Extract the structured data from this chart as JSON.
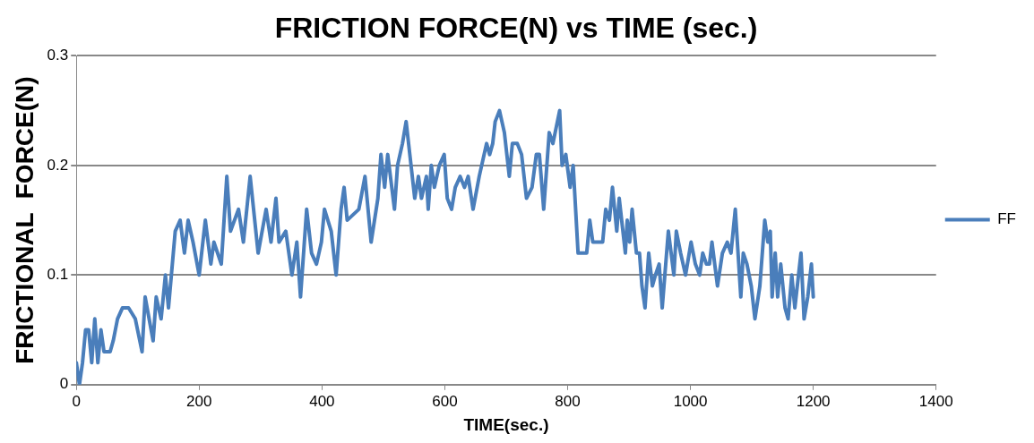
{
  "chart_data": {
    "type": "line",
    "title": "FRICTION FORCE(N) vs TIME (sec.)",
    "xlabel": "TIME(sec.)",
    "ylabel": "FRICTIONAL  FORCE(N)",
    "xlim": [
      0,
      1400
    ],
    "xticks": [
      0,
      200,
      400,
      600,
      800,
      1000,
      1200,
      1400
    ],
    "ylim": [
      0,
      0.3
    ],
    "yticks": [
      0,
      0.1,
      0.2,
      0.3
    ],
    "grid": "y",
    "legend": "right",
    "marker": "none",
    "line_style": "solid",
    "series": [
      {
        "name": "FF",
        "color": "#4a7ebb",
        "x": [
          0,
          5,
          10,
          15,
          20,
          25,
          30,
          35,
          40,
          45,
          55,
          60,
          67,
          75,
          85,
          96,
          107,
          112,
          125,
          130,
          138,
          145,
          150,
          161,
          169,
          176,
          182,
          190,
          200,
          210,
          219,
          224,
          236,
          245,
          251,
          264,
          272,
          283,
          296,
          309,
          317,
          325,
          330,
          341,
          351,
          359,
          365,
          375,
          383,
          391,
          399,
          404,
          415,
          423,
          431,
          436,
          441,
          460,
          470,
          480,
          491,
          496,
          502,
          507,
          518,
          523,
          531,
          537,
          543,
          551,
          557,
          562,
          570,
          573,
          578,
          583,
          591,
          599,
          604,
          611,
          617,
          625,
          632,
          638,
          646,
          656,
          668,
          673,
          678,
          682,
          689,
          697,
          705,
          710,
          718,
          725,
          733,
          742,
          749,
          754,
          761,
          770,
          776,
          787,
          791,
          797,
          804,
          809,
          817,
          831,
          836,
          841,
          844,
          857,
          862,
          868,
          873,
          880,
          884,
          894,
          897,
          901,
          905,
          912,
          917,
          921,
          926,
          932,
          938,
          943,
          949,
          954,
          964,
          973,
          977,
          984,
          992,
          1001,
          1008,
          1015,
          1020,
          1026,
          1031,
          1035,
          1044,
          1052,
          1060,
          1066,
          1073,
          1082,
          1086,
          1092,
          1099,
          1105,
          1113,
          1121,
          1126,
          1130,
          1133,
          1138,
          1142,
          1147,
          1154,
          1159,
          1165,
          1170,
          1180,
          1185,
          1191,
          1197,
          1200
        ],
        "values": [
          0.02,
          0,
          0.02,
          0.05,
          0.05,
          0.02,
          0.06,
          0.02,
          0.05,
          0.03,
          0.03,
          0.04,
          0.06,
          0.07,
          0.07,
          0.06,
          0.03,
          0.08,
          0.04,
          0.08,
          0.06,
          0.1,
          0.07,
          0.14,
          0.15,
          0.12,
          0.15,
          0.13,
          0.1,
          0.15,
          0.11,
          0.13,
          0.11,
          0.19,
          0.14,
          0.16,
          0.13,
          0.19,
          0.12,
          0.16,
          0.13,
          0.17,
          0.13,
          0.14,
          0.1,
          0.13,
          0.08,
          0.16,
          0.12,
          0.11,
          0.13,
          0.16,
          0.14,
          0.1,
          0.16,
          0.18,
          0.15,
          0.16,
          0.19,
          0.13,
          0.17,
          0.21,
          0.18,
          0.21,
          0.16,
          0.2,
          0.22,
          0.24,
          0.21,
          0.17,
          0.19,
          0.17,
          0.19,
          0.16,
          0.2,
          0.18,
          0.2,
          0.21,
          0.17,
          0.16,
          0.18,
          0.19,
          0.18,
          0.19,
          0.16,
          0.19,
          0.22,
          0.21,
          0.22,
          0.24,
          0.25,
          0.23,
          0.19,
          0.22,
          0.22,
          0.21,
          0.17,
          0.18,
          0.21,
          0.21,
          0.16,
          0.23,
          0.22,
          0.25,
          0.2,
          0.21,
          0.18,
          0.2,
          0.12,
          0.12,
          0.15,
          0.13,
          0.13,
          0.13,
          0.16,
          0.15,
          0.18,
          0.14,
          0.17,
          0.12,
          0.15,
          0.13,
          0.16,
          0.12,
          0.12,
          0.09,
          0.07,
          0.12,
          0.09,
          0.1,
          0.11,
          0.07,
          0.14,
          0.1,
          0.14,
          0.12,
          0.1,
          0.13,
          0.11,
          0.1,
          0.12,
          0.11,
          0.11,
          0.13,
          0.09,
          0.12,
          0.13,
          0.12,
          0.16,
          0.08,
          0.12,
          0.11,
          0.09,
          0.06,
          0.09,
          0.15,
          0.13,
          0.14,
          0.08,
          0.12,
          0.08,
          0.11,
          0.07,
          0.06,
          0.1,
          0.07,
          0.12,
          0.06,
          0.08,
          0.11,
          0.08
        ]
      }
    ]
  }
}
